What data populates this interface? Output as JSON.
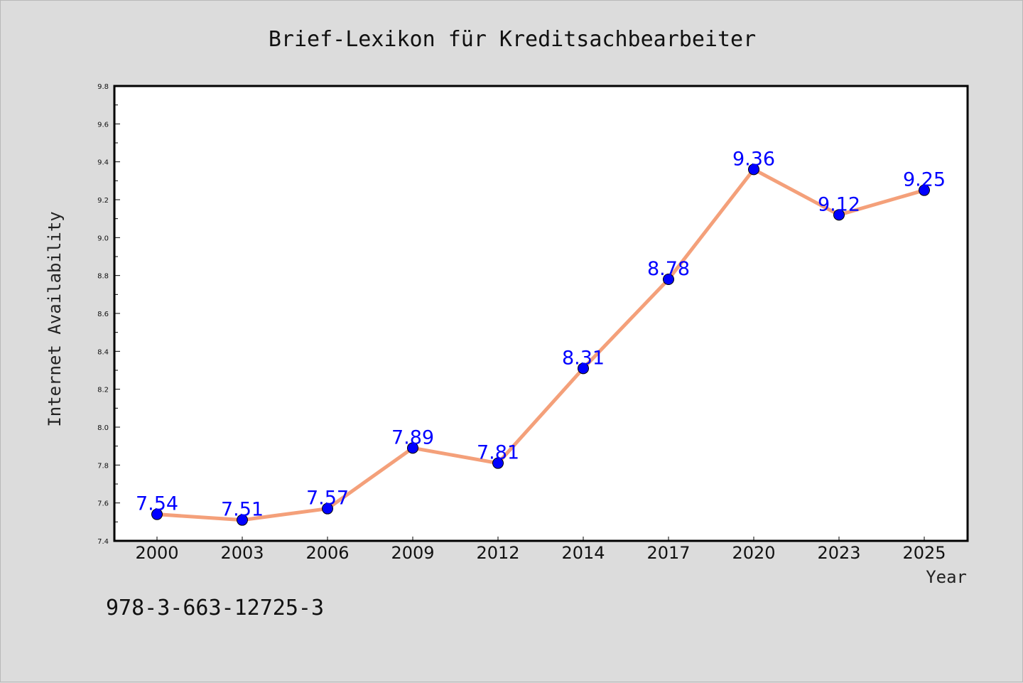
{
  "chart_data": {
    "type": "line",
    "title": "Brief-Lexikon für Kreditsachbearbeiter",
    "xlabel": "Year",
    "ylabel": "Internet Availability",
    "categories": [
      "2000",
      "2003",
      "2006",
      "2009",
      "2012",
      "2014",
      "2017",
      "2020",
      "2023",
      "2025"
    ],
    "series": [
      {
        "values": [
          7.54,
          7.51,
          7.57,
          7.89,
          7.81,
          8.31,
          8.78,
          9.36,
          9.12,
          9.25
        ],
        "labels": [
          "7.54",
          "7.51",
          "7.57",
          "7.89",
          "7.81",
          "8.31",
          "8.78",
          "9.36",
          "9.12",
          "9.25"
        ]
      }
    ],
    "ylim": [
      7.4,
      9.8
    ],
    "yticks": [
      "7.4",
      "7.6",
      "7.8",
      "8.0",
      "8.2",
      "8.4",
      "8.6",
      "8.8",
      "9.0",
      "9.2",
      "9.4",
      "9.6",
      "9.8"
    ],
    "grid": false,
    "legend": "none",
    "colors": {
      "line": "#f4a07a",
      "marker": "#0000ff",
      "label": "#0000ff",
      "background": "#dcdcdc",
      "plot_background": "#ffffff"
    }
  },
  "footer": {
    "text": "978-3-663-12725-3"
  }
}
